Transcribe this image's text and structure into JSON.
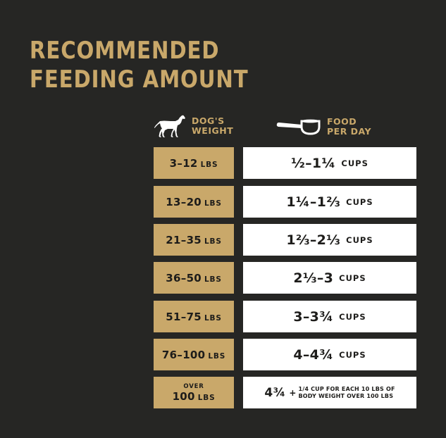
{
  "title": {
    "line1": "RECOMMENDED",
    "line2": "FEEDING AMOUNT"
  },
  "header": {
    "weight_line1": "DOG'S",
    "weight_line2": "WEIGHT",
    "food_line1": "FOOD",
    "food_line2": "PER DAY",
    "weight_icon": "dog-icon",
    "food_icon": "measuring-cup-icon"
  },
  "colors": {
    "background": "#262624",
    "gold": "#c9a86a",
    "white": "#ffffff"
  },
  "rows": [
    {
      "weight": "3–12",
      "unit": "LBS",
      "food": "½–1¼",
      "food_unit": "CUPS"
    },
    {
      "weight": "13–20",
      "unit": "LBS",
      "food": "1¼–1⅔",
      "food_unit": "CUPS"
    },
    {
      "weight": "21–35",
      "unit": "LBS",
      "food": "1⅔–2⅓",
      "food_unit": "CUPS"
    },
    {
      "weight": "36–50",
      "unit": "LBS",
      "food": "2⅓–3",
      "food_unit": "CUPS"
    },
    {
      "weight": "51–75",
      "unit": "LBS",
      "food": "3–3¾",
      "food_unit": "CUPS"
    },
    {
      "weight": "76–100",
      "unit": "LBS",
      "food": "4–4¾",
      "food_unit": "CUPS"
    }
  ],
  "last_row": {
    "prefix": "OVER",
    "weight": "100",
    "unit": "LBS",
    "food": "4¾",
    "plus": "+",
    "note_line1": "1/4 CUP FOR EACH 10 LBS OF",
    "note_line2": "BODY WEIGHT OVER 100 LBS"
  }
}
